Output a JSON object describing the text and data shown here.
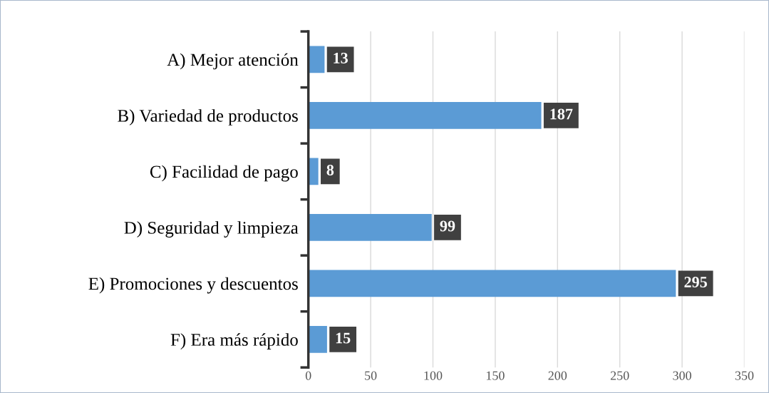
{
  "chart_data": {
    "type": "bar",
    "orientation": "horizontal",
    "categories": [
      "A) Mejor atención",
      "B) Variedad de productos",
      "C) Facilidad de pago",
      "D) Seguridad y limpieza",
      "E) Promociones y descuentos",
      "F) Era más rápido"
    ],
    "values": [
      13,
      187,
      8,
      99,
      295,
      15
    ],
    "color": "#5b9bd5",
    "xlim": [
      0,
      350
    ],
    "xticks": [
      0,
      50,
      100,
      150,
      200,
      250,
      300,
      350
    ],
    "grid": "x",
    "data_labels": true
  }
}
